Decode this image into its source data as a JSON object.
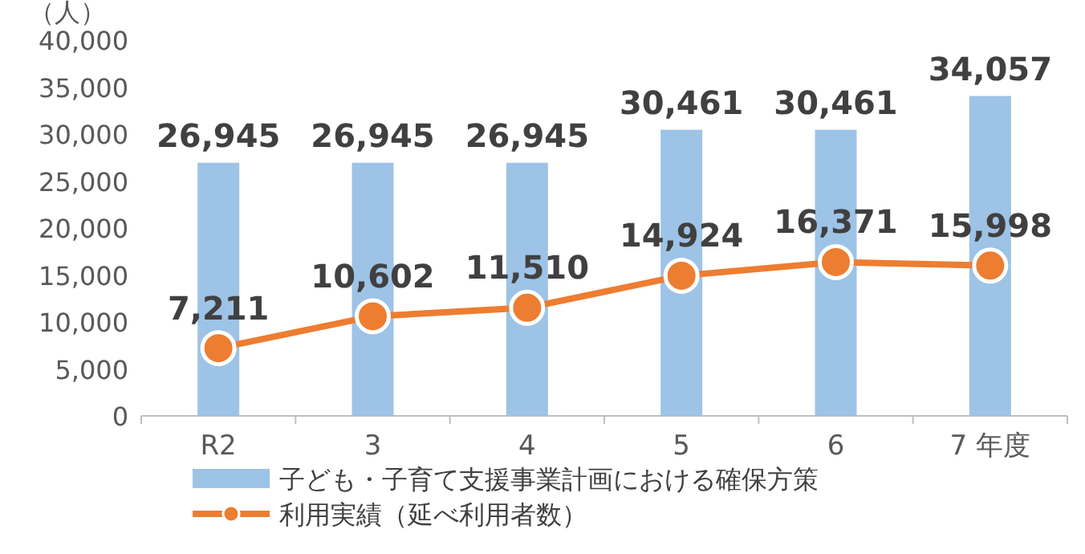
{
  "chart_data": {
    "type": "bar",
    "ylabel": "（人）",
    "categories": [
      "R2",
      "3",
      "4",
      "5",
      "6",
      "7 年度"
    ],
    "ylim": [
      0,
      40000
    ],
    "yticks": [
      0,
      {
        "value": 5000,
        "label": "5,000"
      },
      {
        "value": 10000,
        "label": "10,000"
      },
      {
        "value": 15000,
        "label": "15,000"
      },
      {
        "value": 20000,
        "label": "20,000"
      },
      {
        "value": 25000,
        "label": "25,000"
      },
      {
        "value": 30000,
        "label": "30,000"
      },
      {
        "value": 35000,
        "label": "35,000"
      },
      {
        "value": 40000,
        "label": "40,000"
      }
    ],
    "series": [
      {
        "name": "子ども・子育て支援事業計画における確保方策",
        "color": "#9dc3e6",
        "values": [
          26945,
          26945,
          26945,
          30461,
          30461,
          34057
        ],
        "value_labels": [
          "26,945",
          "26,945",
          "26,945",
          "30,461",
          "30,461",
          "34,057"
        ]
      },
      {
        "name": "利用実績（延べ利用者数）",
        "type": "line",
        "color": "#ed7d31",
        "values": [
          7211,
          10602,
          11510,
          14924,
          16371,
          15998
        ],
        "value_labels": [
          "7,211",
          "10,602",
          "11,510",
          "14,924",
          "16,371",
          "15,998"
        ]
      }
    ],
    "marker": "circle",
    "legend": "bottom",
    "grid": false
  }
}
